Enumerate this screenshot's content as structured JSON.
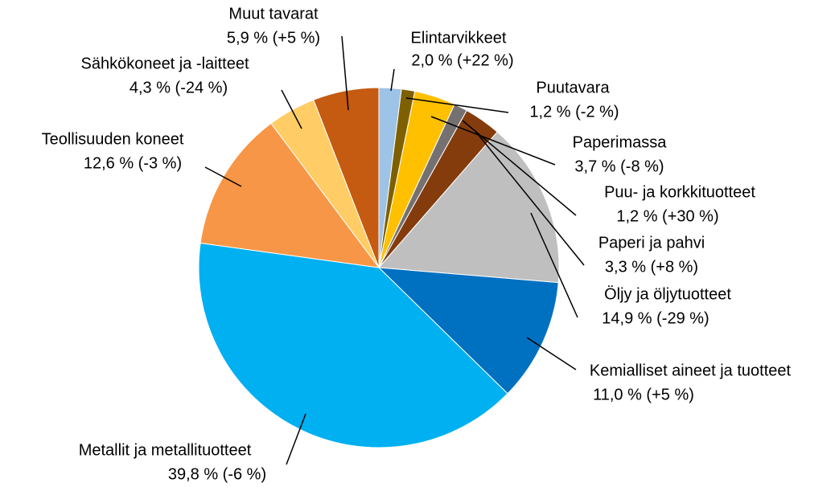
{
  "chart_data": {
    "type": "pie",
    "categories": [
      "Elintarvikkeet",
      "Puutavara",
      "Paperimassa",
      "Puu- ja korkkituotteet",
      "Paperi ja pahvi",
      "Öljy ja öljytuotteet",
      "Kemialliset aineet ja tuotteet",
      "Metallit ja metallituotteet",
      "Teollisuuden koneet",
      "Sähkökoneet ja -laitteet",
      "Muut tavarat"
    ],
    "values": [
      2.0,
      1.2,
      3.7,
      1.2,
      3.3,
      14.9,
      11.0,
      39.8,
      12.6,
      4.3,
      5.9
    ],
    "value_labels": [
      "2,0 % (+22 %)",
      "1,2 % (-2 %)",
      "3,7 % (-8 %)",
      "1,2 % (+30 %)",
      "3,3 % (+8 %)",
      "14,9 % (-29 %)",
      "11,0 % (+5 %)",
      "39,8 % (-6 %)",
      "12,6 % (-3 %)",
      "4,3 % (-24 %)",
      "5,9 % (+5 %)"
    ],
    "colors": [
      "#9DC3E6",
      "#7F6000",
      "#FFC000",
      "#767171",
      "#843C0C",
      "#BFBFBF",
      "#0070C0",
      "#00B0F0",
      "#F79646",
      "#FFCC66",
      "#C55A11"
    ]
  }
}
